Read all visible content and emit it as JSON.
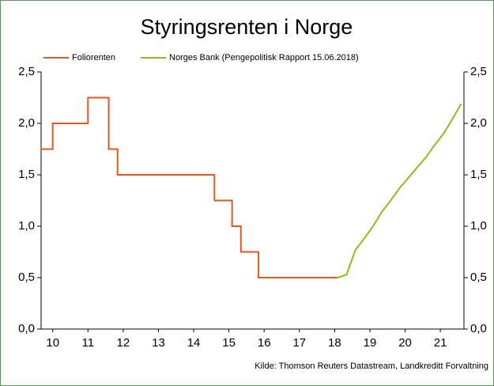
{
  "chart_data": {
    "type": "line",
    "title": "Styringsrenten i Norge",
    "source": "Kilde: Thomson Reuters Datastream, Landkreditt Forvaltning",
    "xlim": [
      2010,
      2022
    ],
    "xticks": [
      {
        "value": 2010.33,
        "label": "10"
      },
      {
        "value": 2011.33,
        "label": "11"
      },
      {
        "value": 2012.33,
        "label": "12"
      },
      {
        "value": 2013.33,
        "label": "13"
      },
      {
        "value": 2014.33,
        "label": "14"
      },
      {
        "value": 2015.33,
        "label": "15"
      },
      {
        "value": 2016.33,
        "label": "16"
      },
      {
        "value": 2017.33,
        "label": "17"
      },
      {
        "value": 2018.33,
        "label": "18"
      },
      {
        "value": 2019.33,
        "label": "19"
      },
      {
        "value": 2020.33,
        "label": "20"
      },
      {
        "value": 2021.33,
        "label": "21"
      }
    ],
    "ylim": [
      0,
      2.5
    ],
    "yticks": [
      {
        "value": 0,
        "label": "0,0"
      },
      {
        "value": 0.5,
        "label": "0,5"
      },
      {
        "value": 1,
        "label": "1,0"
      },
      {
        "value": 1.5,
        "label": "1,5"
      },
      {
        "value": 2,
        "label": "2,0"
      },
      {
        "value": 2.5,
        "label": "2,5"
      }
    ],
    "y2lim": [
      0,
      2.5
    ],
    "y2ticks": [
      {
        "value": 0,
        "label": "0,0"
      },
      {
        "value": 0.5,
        "label": "0,5"
      },
      {
        "value": 1,
        "label": "1,0"
      },
      {
        "value": 1.5,
        "label": "1,5"
      },
      {
        "value": 2,
        "label": "2,0"
      },
      {
        "value": 2.5,
        "label": "2,5"
      }
    ],
    "series": [
      {
        "name": "Foliorenten",
        "color": "#e2581c",
        "x": [
          2010,
          2010.33,
          2010.33,
          2011.33,
          2011.33,
          2011.92,
          2011.92,
          2012.17,
          2012.17,
          2014.92,
          2014.92,
          2015.42,
          2015.42,
          2015.67,
          2015.67,
          2016.17,
          2016.17,
          2018.42
        ],
        "values": [
          1.75,
          1.75,
          2.0,
          2.0,
          2.25,
          2.25,
          1.75,
          1.75,
          1.5,
          1.5,
          1.25,
          1.25,
          1.0,
          1.0,
          0.75,
          0.75,
          0.5,
          0.5
        ]
      },
      {
        "name": "Norges Bank (Pengepolitisk Rapport 15.06.2018)",
        "color": "#8cbc1c",
        "x": [
          2018.42,
          2018.67,
          2018.92,
          2019.17,
          2019.42,
          2019.67,
          2019.92,
          2020.17,
          2020.42,
          2020.67,
          2020.92,
          2021.17,
          2021.42,
          2021.67,
          2021.92
        ],
        "values": [
          0.5,
          0.53,
          0.77,
          0.88,
          1.0,
          1.14,
          1.25,
          1.37,
          1.47,
          1.57,
          1.67,
          1.79,
          1.9,
          2.04,
          2.19
        ]
      }
    ]
  }
}
